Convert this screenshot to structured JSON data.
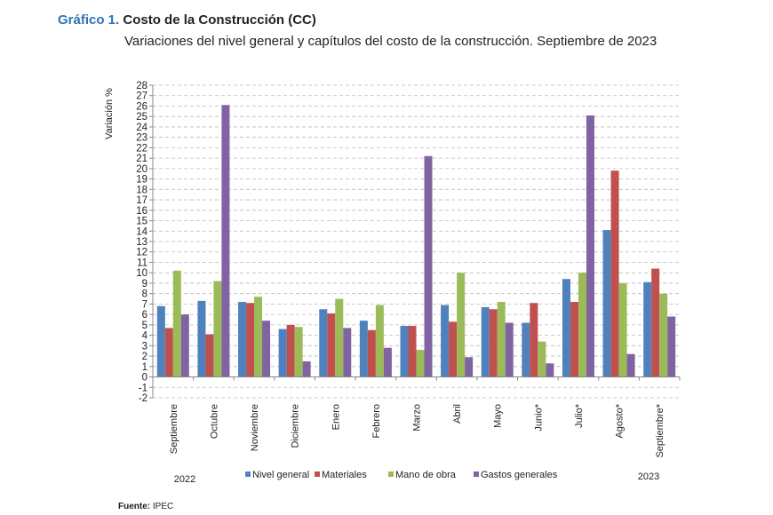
{
  "header": {
    "figure_number": "Gráfico 1.",
    "title": "Costo de la Construcción (CC)",
    "subtitle": "Variaciones del nivel general y capítulos del costo de la construcción. Septiembre de 2023"
  },
  "source": {
    "label": "Fuente:",
    "value": "IPEC"
  },
  "chart_data": {
    "type": "bar",
    "title": "",
    "xlabel": "",
    "ylabel": "Variación %",
    "ylim": [
      -2,
      28
    ],
    "ytick_step": 1,
    "grid": true,
    "legend_position": "bottom",
    "year_labels": [
      "2022",
      "2023"
    ],
    "categories": [
      "Septiembre",
      "Octubre",
      "Noviembre",
      "Diciembre",
      "Enero",
      "Febrero",
      "Marzo",
      "Abril",
      "Mayo",
      "Junio*",
      "Julio*",
      "Agosto*",
      "Septiembre*"
    ],
    "series": [
      {
        "name": "Nivel general",
        "color": "#4f81bd",
        "values": [
          6.8,
          7.3,
          7.2,
          4.6,
          6.5,
          5.4,
          4.9,
          6.9,
          6.7,
          5.2,
          9.4,
          14.1,
          9.1
        ]
      },
      {
        "name": "Materiales",
        "color": "#c0504d",
        "values": [
          4.7,
          4.1,
          7.1,
          5.0,
          6.1,
          4.5,
          4.9,
          5.3,
          6.5,
          7.1,
          7.2,
          19.8,
          10.4
        ]
      },
      {
        "name": "Mano de obra",
        "color": "#9bbb59",
        "values": [
          10.2,
          9.2,
          7.7,
          4.8,
          7.5,
          6.9,
          2.6,
          10.0,
          7.2,
          3.4,
          10.0,
          9.0,
          8.0
        ]
      },
      {
        "name": "Gastos generales",
        "color": "#8064a2",
        "values": [
          6.0,
          26.1,
          5.4,
          1.5,
          4.7,
          2.8,
          21.2,
          1.9,
          5.2,
          1.3,
          25.1,
          2.2,
          5.8
        ]
      }
    ]
  }
}
